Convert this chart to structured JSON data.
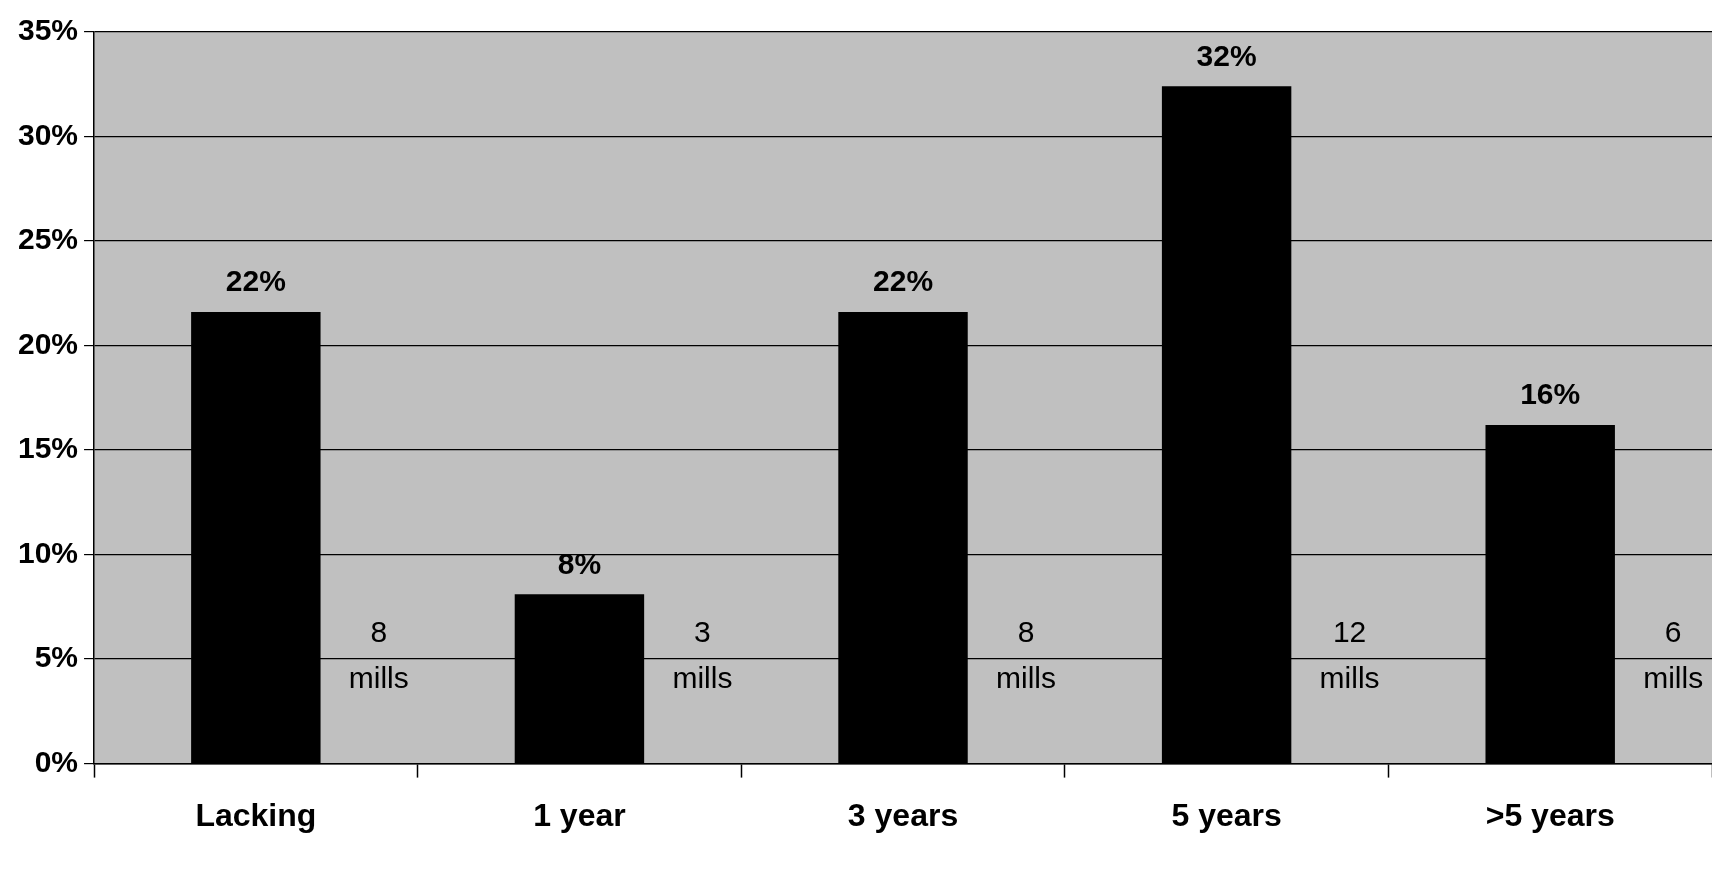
{
  "chart_data": {
    "type": "bar",
    "categories": [
      "Lacking",
      "1 year",
      "3 years",
      "5 years",
      ">5 years"
    ],
    "values": [
      21.6,
      8.1,
      21.6,
      32.4,
      16.2
    ],
    "value_labels": [
      "22%",
      "8%",
      "22%",
      "32%",
      "16%"
    ],
    "color": "#000000",
    "ylim": [
      0,
      35
    ],
    "yticks": [
      {
        "value": 0,
        "label": "0%"
      },
      {
        "value": 5,
        "label": "5%"
      },
      {
        "value": 10,
        "label": "10%"
      },
      {
        "value": 15,
        "label": "15%"
      },
      {
        "value": 20,
        "label": "20%"
      },
      {
        "value": 25,
        "label": "25%"
      },
      {
        "value": 30,
        "label": "30%"
      },
      {
        "value": 35,
        "label": "35%"
      }
    ],
    "grid": "y",
    "legend": false,
    "annotations": [
      "8 mills",
      "3 mills",
      "8 mills",
      "12 mills",
      "6 mills"
    ]
  }
}
